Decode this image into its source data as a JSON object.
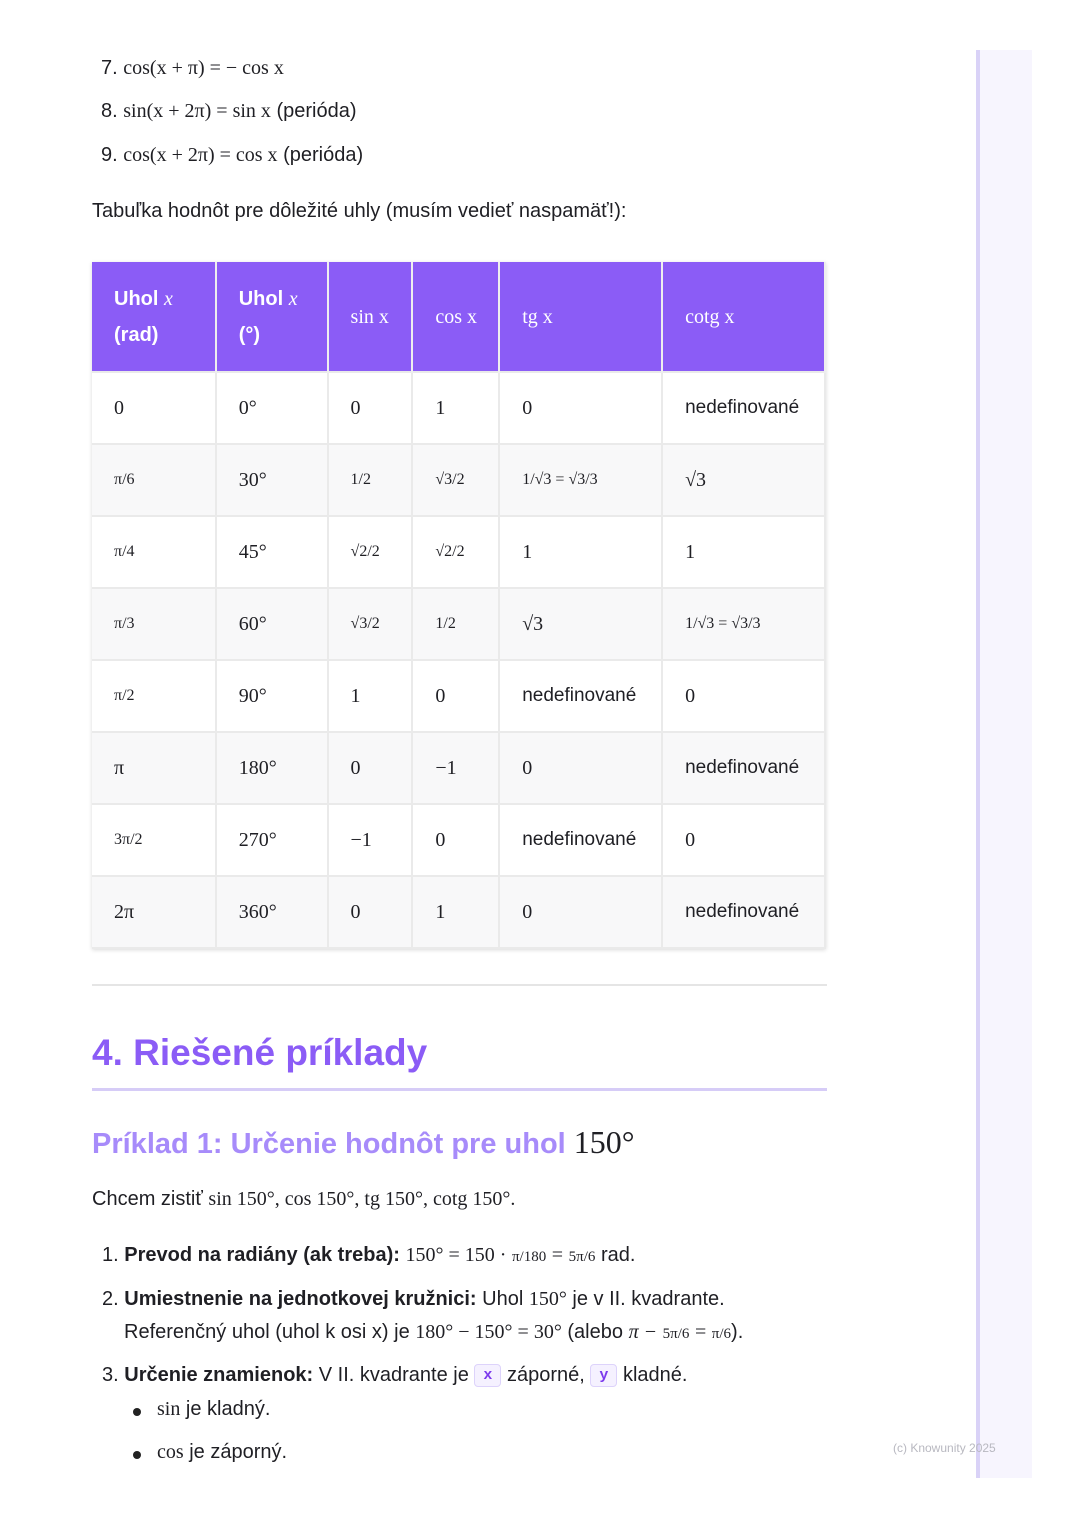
{
  "formulas": [
    {
      "num": "7.",
      "expr": "cos(x + π) = − cos x",
      "note": ""
    },
    {
      "num": "8.",
      "expr": "sin(x + 2π) = sin x",
      "note": "(perióda)"
    },
    {
      "num": "9.",
      "expr": "cos(x + 2π) = cos x",
      "note": "(perióda)"
    }
  ],
  "table_intro": "Tabuľka hodnôt pre dôležité uhly (musím vedieť naspamäť!):",
  "table": {
    "header_color": "#8b5cf6",
    "headers": [
      {
        "text": "Uhol",
        "math": "x",
        "sub": "(rad)"
      },
      {
        "text": "Uhol",
        "math": "x",
        "sub": "(°)"
      },
      {
        "text": "",
        "math": "sin x",
        "sub": ""
      },
      {
        "text": "",
        "math": "cos x",
        "sub": ""
      },
      {
        "text": "",
        "math": "tg x",
        "sub": ""
      },
      {
        "text": "",
        "math": "cotg x",
        "sub": ""
      }
    ],
    "rows": [
      [
        "0",
        "0°",
        "0",
        "1",
        "0",
        "nedefinované"
      ],
      [
        "π/6",
        "30°",
        "1/2",
        "√3/2",
        "1/√3 = √3/3",
        "√3"
      ],
      [
        "π/4",
        "45°",
        "√2/2",
        "√2/2",
        "1",
        "1"
      ],
      [
        "π/3",
        "60°",
        "√3/2",
        "1/2",
        "√3",
        "1/√3 = √3/3"
      ],
      [
        "π/2",
        "90°",
        "1",
        "0",
        "nedefinované",
        "0"
      ],
      [
        "π",
        "180°",
        "0",
        "−1",
        "0",
        "nedefinované"
      ],
      [
        "3π/2",
        "270°",
        "−1",
        "0",
        "nedefinované",
        "0"
      ],
      [
        "2π",
        "360°",
        "0",
        "1",
        "0",
        "nedefinované"
      ]
    ]
  },
  "section": {
    "title": "4. Riešené príklady",
    "accent": "#8b5cf6"
  },
  "example": {
    "title": "Príklad 1: Určenie hodnôt pre uhol",
    "title_math": "150°",
    "intro_text": "Chcem zistiť",
    "intro_math": "sin 150°, cos 150°, tg 150°, cotg 150°.",
    "steps": [
      {
        "num": "1.",
        "label": "Prevod na radiány (ak treba):",
        "math_a": "150° = 150 ·",
        "frac1": "π/180",
        "eq": "=",
        "frac2": "5π/6",
        "tail": "rad."
      },
      {
        "num": "2.",
        "label": "Umiestnenie na jednotkovej kružnici:",
        "t1": "Uhol",
        "m1": "150°",
        "t2": "je v II. kvadrante.",
        "l2a": "Referenčný uhol (uhol k osi x) je",
        "m2": "180° − 150° = 30°",
        "l2b": "(alebo",
        "m3": "π −",
        "frac1": "5π/6",
        "frac2": "π/6",
        "end": ")."
      },
      {
        "num": "3.",
        "label": "Určenie znamienok:",
        "t1": "V II. kvadrante je",
        "code1": "x",
        "t2": "záporné,",
        "code2": "y",
        "t3": "kladné."
      }
    ],
    "bullets": [
      {
        "math": "sin",
        "text": "je kladný."
      },
      {
        "math": "cos",
        "text": "je záporný."
      }
    ]
  },
  "watermark": "(c) Knowunity 2025"
}
